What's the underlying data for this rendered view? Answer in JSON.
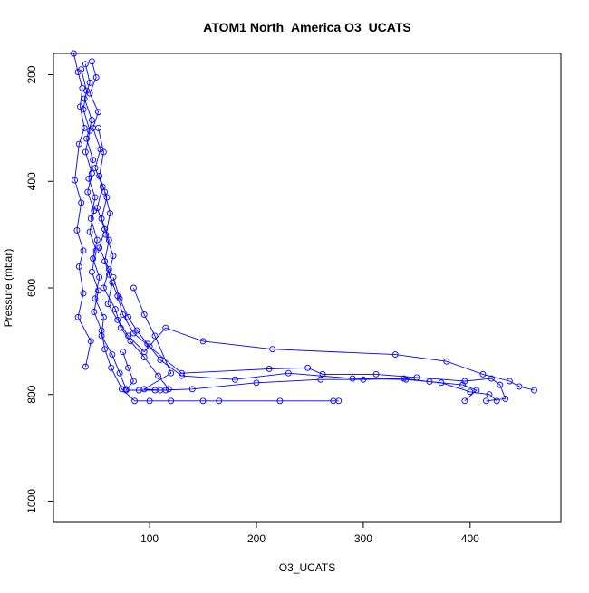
{
  "chart_data": {
    "type": "line",
    "title": "ATOM1 North_America O3_UCATS",
    "xlabel": "O3_UCATS",
    "ylabel": "Pressure (mbar)",
    "xlim": [
      10,
      485
    ],
    "ylim": [
      1040,
      160
    ],
    "y_inverted": true,
    "grid": false,
    "x_ticks": [
      100,
      200,
      300,
      400
    ],
    "y_ticks": [
      200,
      400,
      600,
      800,
      1000
    ],
    "colors": {
      "series": "#0000ff"
    },
    "series": [
      {
        "marker": "open-circle",
        "points": [
          [
            29,
            160
          ],
          [
            33,
            195
          ],
          [
            37,
            225
          ],
          [
            35,
            260
          ],
          [
            39,
            300
          ],
          [
            34,
            330
          ],
          [
            30,
            398
          ],
          [
            36,
            440
          ],
          [
            32,
            492
          ],
          [
            38,
            530
          ],
          [
            34,
            560
          ],
          [
            38,
            610
          ],
          [
            33,
            655
          ],
          [
            45,
            700
          ],
          [
            40,
            748
          ]
        ]
      },
      {
        "marker": "open-circle",
        "points": [
          [
            40,
            180
          ],
          [
            44,
            215
          ],
          [
            39,
            245
          ],
          [
            46,
            285
          ],
          [
            41,
            320
          ],
          [
            47,
            360
          ],
          [
            43,
            395
          ],
          [
            49,
            430
          ],
          [
            45,
            470
          ],
          [
            51,
            510
          ],
          [
            47,
            545
          ],
          [
            53,
            580
          ],
          [
            49,
            620
          ],
          [
            57,
            655
          ],
          [
            55,
            690
          ],
          [
            65,
            725
          ],
          [
            72,
            760
          ],
          [
            78,
            790
          ]
        ]
      },
      {
        "marker": "open-circle",
        "points": [
          [
            46,
            175
          ],
          [
            50,
            205
          ],
          [
            44,
            235
          ],
          [
            52,
            270
          ],
          [
            47,
            300
          ],
          [
            54,
            340
          ],
          [
            49,
            375
          ],
          [
            56,
            410
          ],
          [
            51,
            450
          ],
          [
            58,
            490
          ],
          [
            53,
            525
          ],
          [
            62,
            565
          ],
          [
            57,
            600
          ],
          [
            68,
            640
          ],
          [
            73,
            675
          ],
          [
            82,
            700
          ],
          [
            95,
            730
          ],
          [
            108,
            765
          ],
          [
            118,
            790
          ]
        ]
      },
      {
        "marker": "open-circle",
        "points": [
          [
            36,
            190
          ],
          [
            41,
            230
          ],
          [
            38,
            265
          ],
          [
            44,
            305
          ],
          [
            40,
            345
          ],
          [
            46,
            385
          ],
          [
            42,
            420
          ],
          [
            48,
            455
          ],
          [
            44,
            495
          ],
          [
            50,
            530
          ],
          [
            46,
            570
          ],
          [
            52,
            605
          ],
          [
            48,
            645
          ],
          [
            55,
            680
          ],
          [
            58,
            715
          ],
          [
            64,
            750
          ],
          [
            74,
            790
          ],
          [
            86,
            812
          ],
          [
            100,
            812
          ],
          [
            120,
            812
          ],
          [
            150,
            812
          ],
          [
            165,
            812
          ],
          [
            222,
            812
          ],
          [
            272,
            812
          ],
          [
            277,
            812
          ]
        ]
      },
      {
        "marker": "open-circle",
        "points": [
          [
            52,
            300
          ],
          [
            57,
            345
          ],
          [
            53,
            390
          ],
          [
            60,
            430
          ],
          [
            55,
            470
          ],
          [
            62,
            510
          ],
          [
            58,
            550
          ],
          [
            65,
            590
          ],
          [
            61,
            630
          ],
          [
            70,
            660
          ],
          [
            80,
            690
          ],
          [
            95,
            720
          ],
          [
            115,
            675
          ],
          [
            150,
            700
          ],
          [
            215,
            715
          ],
          [
            330,
            725
          ],
          [
            378,
            738
          ],
          [
            412,
            762
          ],
          [
            437,
            775
          ],
          [
            446,
            785
          ],
          [
            460,
            792
          ]
        ]
      },
      {
        "marker": "open-circle",
        "points": [
          [
            58,
            420
          ],
          [
            63,
            460
          ],
          [
            59,
            500
          ],
          [
            66,
            540
          ],
          [
            62,
            575
          ],
          [
            70,
            615
          ],
          [
            75,
            650
          ],
          [
            85,
            685
          ],
          [
            100,
            710
          ],
          [
            130,
            760
          ],
          [
            212,
            752
          ],
          [
            248,
            750
          ],
          [
            262,
            762
          ],
          [
            312,
            762
          ],
          [
            350,
            768
          ],
          [
            395,
            775
          ],
          [
            420,
            770
          ],
          [
            428,
            782
          ],
          [
            433,
            808
          ],
          [
            415,
            812
          ]
        ]
      },
      {
        "marker": "open-circle",
        "points": [
          [
            66,
            580
          ],
          [
            72,
            620
          ],
          [
            80,
            655
          ],
          [
            88,
            680
          ],
          [
            98,
            705
          ],
          [
            110,
            735
          ],
          [
            130,
            765
          ],
          [
            180,
            772
          ],
          [
            230,
            760
          ],
          [
            290,
            770
          ],
          [
            340,
            772
          ],
          [
            373,
            778
          ],
          [
            400,
            795
          ],
          [
            418,
            800
          ],
          [
            425,
            812
          ]
        ]
      },
      {
        "marker": "open-circle",
        "points": [
          [
            85,
            600
          ],
          [
            95,
            650
          ],
          [
            105,
            690
          ],
          [
            120,
            760
          ],
          [
            95,
            790
          ],
          [
            110,
            792
          ],
          [
            140,
            790
          ],
          [
            200,
            778
          ],
          [
            260,
            772
          ],
          [
            300,
            772
          ],
          [
            338,
            770
          ],
          [
            362,
            776
          ],
          [
            393,
            782
          ],
          [
            406,
            792
          ],
          [
            395,
            812
          ]
        ]
      },
      {
        "marker": "open-circle",
        "points": [
          [
            75,
            720
          ],
          [
            80,
            750
          ],
          [
            85,
            775
          ],
          [
            78,
            792
          ],
          [
            90,
            792
          ],
          [
            105,
            792
          ],
          [
            115,
            792
          ]
        ]
      }
    ]
  }
}
